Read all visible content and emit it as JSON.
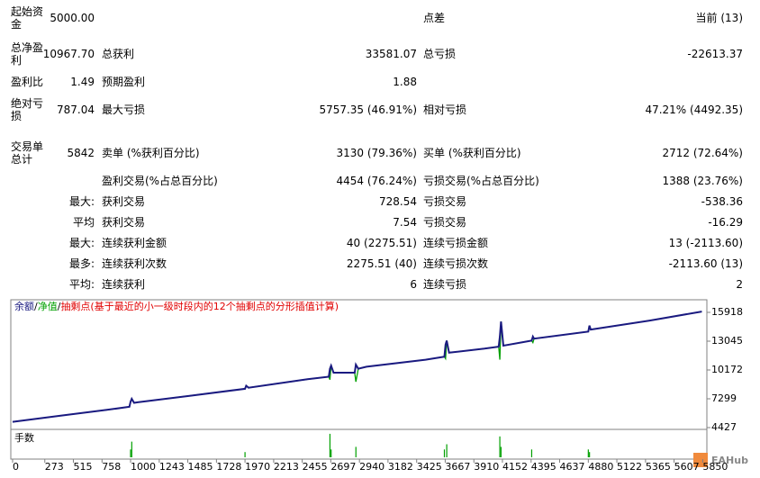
{
  "report": {
    "rows": [
      [
        "起始资金",
        "5000.00",
        null,
        null,
        "点差",
        "当前 (13)"
      ],
      [
        "总净盈利",
        "10967.70",
        "总获利",
        "33581.07",
        "总亏损",
        "-22613.37"
      ],
      [
        "盈利比",
        "1.49",
        "预期盈利",
        "1.88",
        null,
        null
      ],
      [
        "绝对亏损",
        "787.04",
        "最大亏损",
        "5757.35 (46.91%)",
        "相对亏损",
        "47.21% (4492.35)"
      ],
      [
        "交易单总计",
        "5842",
        "卖单 (%获利百分比)",
        "3130 (79.36%)",
        "买单 (%获利百分比)",
        "2712 (72.64%)"
      ],
      [
        null,
        null,
        "盈利交易(%占总百分比)",
        "4454 (76.24%)",
        "亏损交易(%占总百分比)",
        "1388 (23.76%)"
      ],
      [
        "最大:",
        null,
        "获利交易",
        "728.54",
        "亏损交易",
        "-538.36"
      ],
      [
        "平均",
        null,
        "获利交易",
        "7.54",
        "亏损交易",
        "-16.29"
      ],
      [
        "最大:",
        null,
        "连续获利金额",
        "40 (2275.51)",
        "连续亏损金额",
        "13 (-2113.60)"
      ],
      [
        "最多:",
        null,
        "连续获利次数",
        "2275.51 (40)",
        "连续亏损次数",
        "-2113.60 (13)"
      ],
      [
        "平均:",
        null,
        "连续获利",
        "6",
        "连续亏损",
        "2"
      ]
    ]
  },
  "chart_data": {
    "type": "line",
    "legend_separator": "/",
    "legend_note": "抽剩点(基于最近的小一级时段内的12个抽剩点的分形插值计算)",
    "note_color": "#e00000",
    "x": [
      0,
      400,
      800,
      990,
      1000,
      1010,
      1030,
      1060,
      1500,
      1970,
      1980,
      2000,
      2500,
      2680,
      2690,
      2700,
      2720,
      2900,
      2910,
      2930,
      3000,
      3500,
      3660,
      3670,
      3680,
      3700,
      4000,
      4120,
      4130,
      4140,
      4160,
      4400,
      4410,
      4420,
      4880,
      4890,
      4900,
      5400,
      5842
    ],
    "series": [
      {
        "name": "净值",
        "color": "#00a000",
        "values": [
          5000,
          5600,
          6200,
          6500,
          7000,
          7300,
          6900,
          6950,
          7600,
          8300,
          8600,
          8400,
          9250,
          9500,
          9200,
          10600,
          9900,
          9900,
          9000,
          10300,
          10500,
          11200,
          11500,
          11300,
          13100,
          11900,
          12300,
          12500,
          11200,
          15000,
          12600,
          13100,
          12900,
          13300,
          14000,
          14600,
          14200,
          15100,
          16000
        ]
      },
      {
        "name": "余额",
        "color": "#1a1a80",
        "values": [
          5000,
          5600,
          6200,
          6500,
          7000,
          7300,
          6900,
          6950,
          7600,
          8300,
          8600,
          8400,
          9250,
          9500,
          10300,
          10600,
          9900,
          9900,
          10700,
          10300,
          10500,
          11200,
          11500,
          12700,
          13100,
          11900,
          12300,
          12500,
          13500,
          15000,
          12600,
          13100,
          13500,
          13300,
          14000,
          14600,
          14200,
          15100,
          16000
        ]
      }
    ],
    "xlim": [
      0,
      5885
    ],
    "xticks": [
      0,
      273,
      515,
      758,
      1000,
      1243,
      1485,
      1728,
      1970,
      2213,
      2455,
      2697,
      2940,
      3182,
      3425,
      3667,
      3910,
      4152,
      4395,
      4637,
      4880,
      5122,
      5365,
      5607,
      5850
    ],
    "ylim": [
      4427,
      17175
    ],
    "yticks": [
      15918,
      13045,
      10172,
      7299,
      4427
    ],
    "volume": {
      "name": "手数",
      "color": "#00a000",
      "x": [
        1000,
        1010,
        1970,
        2690,
        2700,
        2910,
        3660,
        3680,
        4130,
        4140,
        4400,
        4880,
        4890
      ],
      "values": [
        0.3,
        0.6,
        0.2,
        0.9,
        0.3,
        0.4,
        0.3,
        0.5,
        0.8,
        0.4,
        0.3,
        0.3,
        0.2
      ],
      "ylim": [
        0,
        1
      ]
    }
  },
  "watermark": "EAHub"
}
